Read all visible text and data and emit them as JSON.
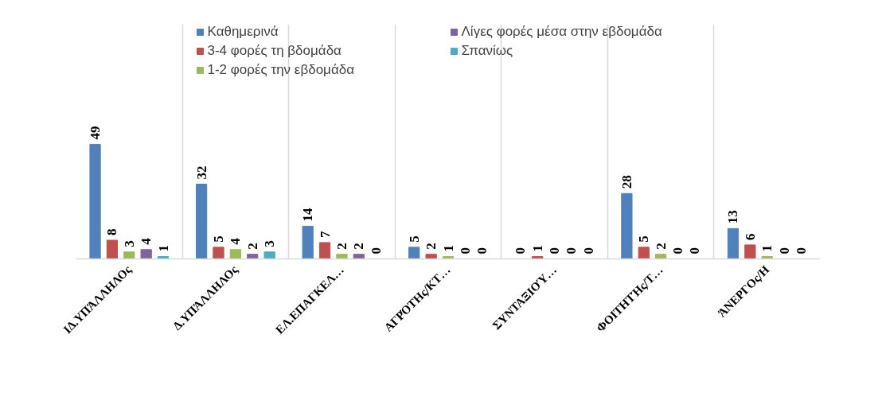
{
  "chart_data": {
    "type": "bar",
    "categories": [
      "ΙΔ.ΥΠΆΛΛΗΛΟς",
      "Δ.ΥΠΆΛΛΗΛΟς",
      "ΕΛ.ΕΠΑΓΚΕΛ…",
      "ΑΓΡΌΤΗς/ΚΤ…",
      "ΣΥΝΤΑΞΙΟΎ…",
      "ΦΟΙΤΗΤΉς/Τ…",
      "ΆΝΕΡΓΟς/Η"
    ],
    "series": [
      {
        "name": "Καθημερινά",
        "color": "#4f81bd",
        "values": [
          49,
          32,
          14,
          5,
          0,
          28,
          13
        ]
      },
      {
        "name": "3-4 φορές τη βδομάδα",
        "color": "#c0504d",
        "values": [
          8,
          5,
          7,
          2,
          1,
          5,
          6
        ]
      },
      {
        "name": "1-2 φορές την εβδομάδα",
        "color": "#9bbb59",
        "values": [
          3,
          4,
          2,
          1,
          0,
          2,
          1
        ]
      },
      {
        "name": "Λίγες φορές μέσα στην εβδομάδα",
        "color": "#8064a2",
        "values": [
          4,
          2,
          2,
          0,
          0,
          0,
          0
        ]
      },
      {
        "name": "Σπανίως",
        "color": "#4bacc6",
        "values": [
          1,
          3,
          0,
          0,
          0,
          0,
          0
        ]
      }
    ],
    "data_labels": true,
    "grid": "x",
    "legend": "top",
    "tick_labels": "x"
  }
}
